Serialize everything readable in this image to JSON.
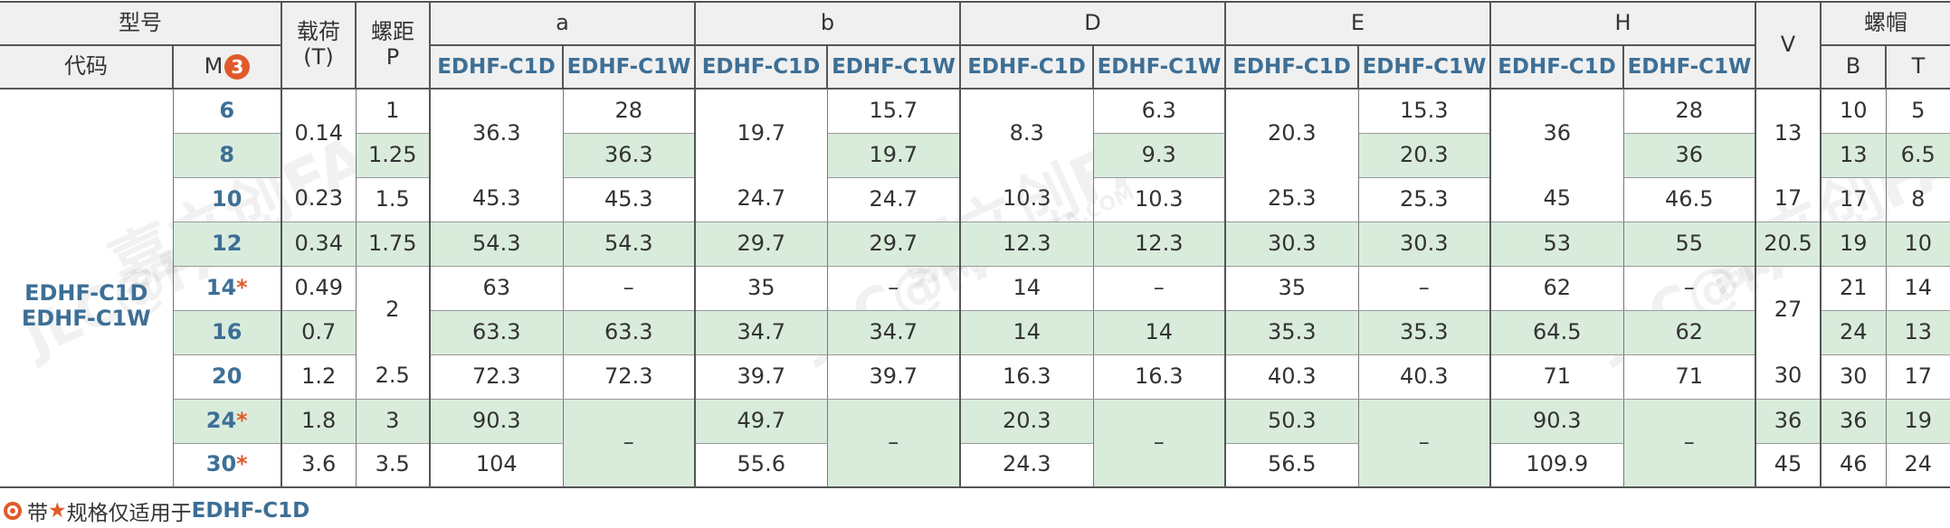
{
  "header": {
    "model_label": "型号",
    "code_label": "代码",
    "m_label": "M",
    "m_badge": "3",
    "load_label": "载荷",
    "load_unit": "(T)",
    "pitch_label": "螺距",
    "pitch_sym": "P",
    "dim_a": "a",
    "dim_b": "b",
    "dim_D": "D",
    "dim_E": "E",
    "dim_H": "H",
    "dim_V": "V",
    "nut_label": "螺帽",
    "nut_B": "B",
    "nut_T": "T",
    "sub_c1d": "EDHF-C1D",
    "sub_c1w": "EDHF-C1W"
  },
  "code": {
    "line1": "EDHF-C1D",
    "line2": "EDHF-C1W"
  },
  "rows": [
    {
      "m": "6",
      "star": "",
      "load": "0.14",
      "p": "1",
      "a1": "36.3",
      "a2": "28",
      "b1": "19.7",
      "b2": "15.7",
      "d1": "8.3",
      "d2": "6.3",
      "e1": "20.3",
      "e2": "15.3",
      "h1": "36",
      "h2": "28",
      "v": "13",
      "nb": "10",
      "nt": "5"
    },
    {
      "m": "8",
      "star": "",
      "load": "",
      "p": "1.25",
      "a1": "",
      "a2": "36.3",
      "b1": "",
      "b2": "19.7",
      "d1": "",
      "d2": "9.3",
      "e1": "",
      "e2": "20.3",
      "h1": "",
      "h2": "36",
      "v": "",
      "nb": "13",
      "nt": "6.5"
    },
    {
      "m": "10",
      "star": "",
      "load": "0.23",
      "p": "1.5",
      "a1": "45.3",
      "a2": "45.3",
      "b1": "24.7",
      "b2": "24.7",
      "d1": "10.3",
      "d2": "10.3",
      "e1": "25.3",
      "e2": "25.3",
      "h1": "45",
      "h2": "46.5",
      "v": "17",
      "nb": "17",
      "nt": "8"
    },
    {
      "m": "12",
      "star": "",
      "load": "0.34",
      "p": "1.75",
      "a1": "54.3",
      "a2": "54.3",
      "b1": "29.7",
      "b2": "29.7",
      "d1": "12.3",
      "d2": "12.3",
      "e1": "30.3",
      "e2": "30.3",
      "h1": "53",
      "h2": "55",
      "v": "20.5",
      "nb": "19",
      "nt": "10"
    },
    {
      "m": "14",
      "star": "*",
      "load": "0.49",
      "p": "2",
      "a1": "63",
      "a2": "–",
      "b1": "35",
      "b2": "–",
      "d1": "14",
      "d2": "–",
      "e1": "35",
      "e2": "–",
      "h1": "62",
      "h2": "–",
      "v": "27",
      "nb": "21",
      "nt": "14"
    },
    {
      "m": "16",
      "star": "",
      "load": "0.7",
      "p": "",
      "a1": "63.3",
      "a2": "63.3",
      "b1": "34.7",
      "b2": "34.7",
      "d1": "14",
      "d2": "14",
      "e1": "35.3",
      "e2": "35.3",
      "h1": "64.5",
      "h2": "62",
      "v": "",
      "nb": "24",
      "nt": "13"
    },
    {
      "m": "20",
      "star": "",
      "load": "1.2",
      "p": "2.5",
      "a1": "72.3",
      "a2": "72.3",
      "b1": "39.7",
      "b2": "39.7",
      "d1": "16.3",
      "d2": "16.3",
      "e1": "40.3",
      "e2": "40.3",
      "h1": "71",
      "h2": "71",
      "v": "30",
      "nb": "30",
      "nt": "17"
    },
    {
      "m": "24",
      "star": "*",
      "load": "1.8",
      "p": "3",
      "a1": "90.3",
      "a2": "–",
      "b1": "49.7",
      "b2": "–",
      "d1": "20.3",
      "d2": "–",
      "e1": "50.3",
      "e2": "–",
      "h1": "90.3",
      "h2": "–",
      "v": "36",
      "nb": "36",
      "nt": "19"
    },
    {
      "m": "30",
      "star": "*",
      "load": "3.6",
      "p": "3.5",
      "a1": "104",
      "a2": "",
      "b1": "55.6",
      "b2": "",
      "d1": "24.3",
      "d2": "",
      "e1": "56.5",
      "e2": "",
      "h1": "109.9",
      "h2": "",
      "v": "45",
      "nb": "46",
      "nt": "24"
    }
  ],
  "footnote": {
    "prefix": "带",
    "star": "★",
    "middle": "规格仅适用于",
    "model": "EDHF-C1D"
  },
  "watermark": {
    "brand": "JLC@FA",
    "cn": "嘉立创FA",
    "url": "WWW.JLCFA.COM"
  }
}
